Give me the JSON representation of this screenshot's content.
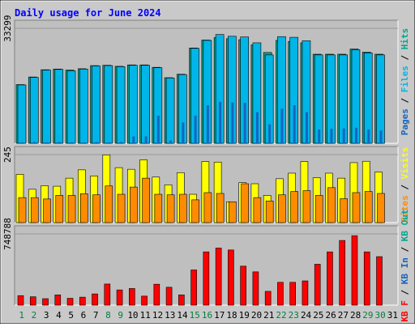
{
  "chart_data": {
    "type": "bar",
    "title": "Daily usage for June 2024",
    "categories": [
      "1",
      "2",
      "3",
      "4",
      "5",
      "6",
      "7",
      "8",
      "9",
      "10",
      "11",
      "12",
      "13",
      "14",
      "15",
      "16",
      "17",
      "18",
      "19",
      "20",
      "21",
      "22",
      "23",
      "24",
      "25",
      "26",
      "27",
      "28",
      "29",
      "30",
      "31"
    ],
    "weekend_days": [
      "1",
      "2",
      "8",
      "9",
      "15",
      "16",
      "22",
      "23",
      "29",
      "30"
    ],
    "colors": {
      "title": "#0000ff",
      "frame_bg": "#c9c9c9",
      "plot_bg": "#bfbfbf",
      "hits": "#00a591",
      "files": "#00b5e8",
      "pages": "#1565c0",
      "visits": "#ffff00",
      "sites": "#ff8c00",
      "kbytes": "#ff0000",
      "kb_out": "#00a591",
      "kb_in": "#1565c0",
      "weekday_label": "#000000",
      "weekend_label": "#007f3f"
    },
    "panels": [
      {
        "name": "hits-files-pages",
        "ymax_label": "33299",
        "ymax": 33299,
        "right_labels": [
          {
            "text": "Pages",
            "color": "#1565c0"
          },
          {
            "text": " / ",
            "color": "#000000"
          },
          {
            "text": "Files",
            "color": "#00b5e8"
          },
          {
            "text": " / ",
            "color": "#000000"
          },
          {
            "text": "Hits",
            "color": "#00a591"
          }
        ],
        "series": [
          {
            "name": "Hits",
            "values": [
              17000,
              19200,
              21300,
              21500,
              21200,
              21600,
              22500,
              22600,
              22300,
              22700,
              22700,
              22000,
              19000,
              20000,
              27600,
              29900,
              30600,
              30300,
              30000,
              28500,
              26300,
              29800,
              29500,
              29100,
              25800,
              25800,
              25800,
              27300,
              26400,
              25800,
              0
            ]
          },
          {
            "name": "Files",
            "values": [
              16900,
              19100,
              21200,
              21400,
              21000,
              21500,
              22400,
              22500,
              22200,
              22600,
              22600,
              21900,
              18900,
              19900,
              27500,
              29800,
              31500,
              31000,
              30800,
              29100,
              25600,
              30900,
              30700,
              29700,
              25600,
              25600,
              25600,
              27100,
              26200,
              25600,
              0
            ]
          },
          {
            "name": "Pages",
            "values": [
              300,
              400,
              300,
              400,
              300,
              300,
              400,
              300,
              400,
              2000,
              2000,
              8000,
              800,
              6000,
              8000,
              11000,
              12000,
              11800,
              11700,
              9000,
              5500,
              10000,
              11000,
              9000,
              4000,
              4200,
              4300,
              4500,
              4000,
              3700,
              0
            ]
          }
        ]
      },
      {
        "name": "visits-sites",
        "ymax_label": "245",
        "ymax": 245,
        "right_labels": [
          {
            "text": "Sites",
            "color": "#ff8c00"
          },
          {
            "text": " / ",
            "color": "#000000"
          },
          {
            "text": "Visits",
            "color": "#ffff00"
          }
        ],
        "series": [
          {
            "name": "Visits",
            "values": [
              174,
              120,
              133,
              131,
              160,
              190,
              168,
              244,
              198,
              192,
              226,
              164,
              136,
              180,
              102,
              220,
              218,
              75,
              144,
              140,
              98,
              158,
              178,
              220,
              162,
              178,
              160,
              216,
              221,
              182,
              0
            ]
          },
          {
            "name": "Sites",
            "values": [
              90,
              90,
              85,
              98,
              98,
              104,
              100,
              132,
              102,
              128,
              160,
              102,
              100,
              102,
              82,
              108,
              105,
              75,
              140,
              90,
              78,
              100,
              112,
              115,
              98,
              126,
              86,
              108,
              112,
              105,
              0
            ]
          }
        ]
      },
      {
        "name": "kbytes",
        "ymax_label": "748788",
        "ymax": 748788,
        "right_labels": [
          {
            "text": "KB F",
            "color": "#ff0000"
          },
          {
            "text": " / ",
            "color": "#000000"
          },
          {
            "text": "KB In",
            "color": "#1565c0"
          },
          {
            "text": " / ",
            "color": "#000000"
          },
          {
            "text": "KB Out",
            "color": "#00a591"
          }
        ],
        "series": [
          {
            "name": "KBytes",
            "values": [
              100000,
              88000,
              68000,
              108000,
              72000,
              84000,
              118000,
              222000,
              160000,
              175000,
              95000,
              220000,
              188000,
              108000,
              370000,
              560000,
              600000,
              580000,
              410000,
              350000,
              145000,
              240000,
              240000,
              255000,
              430000,
              560000,
              680000,
              730000,
              560000,
              510000,
              0
            ]
          }
        ]
      }
    ]
  }
}
